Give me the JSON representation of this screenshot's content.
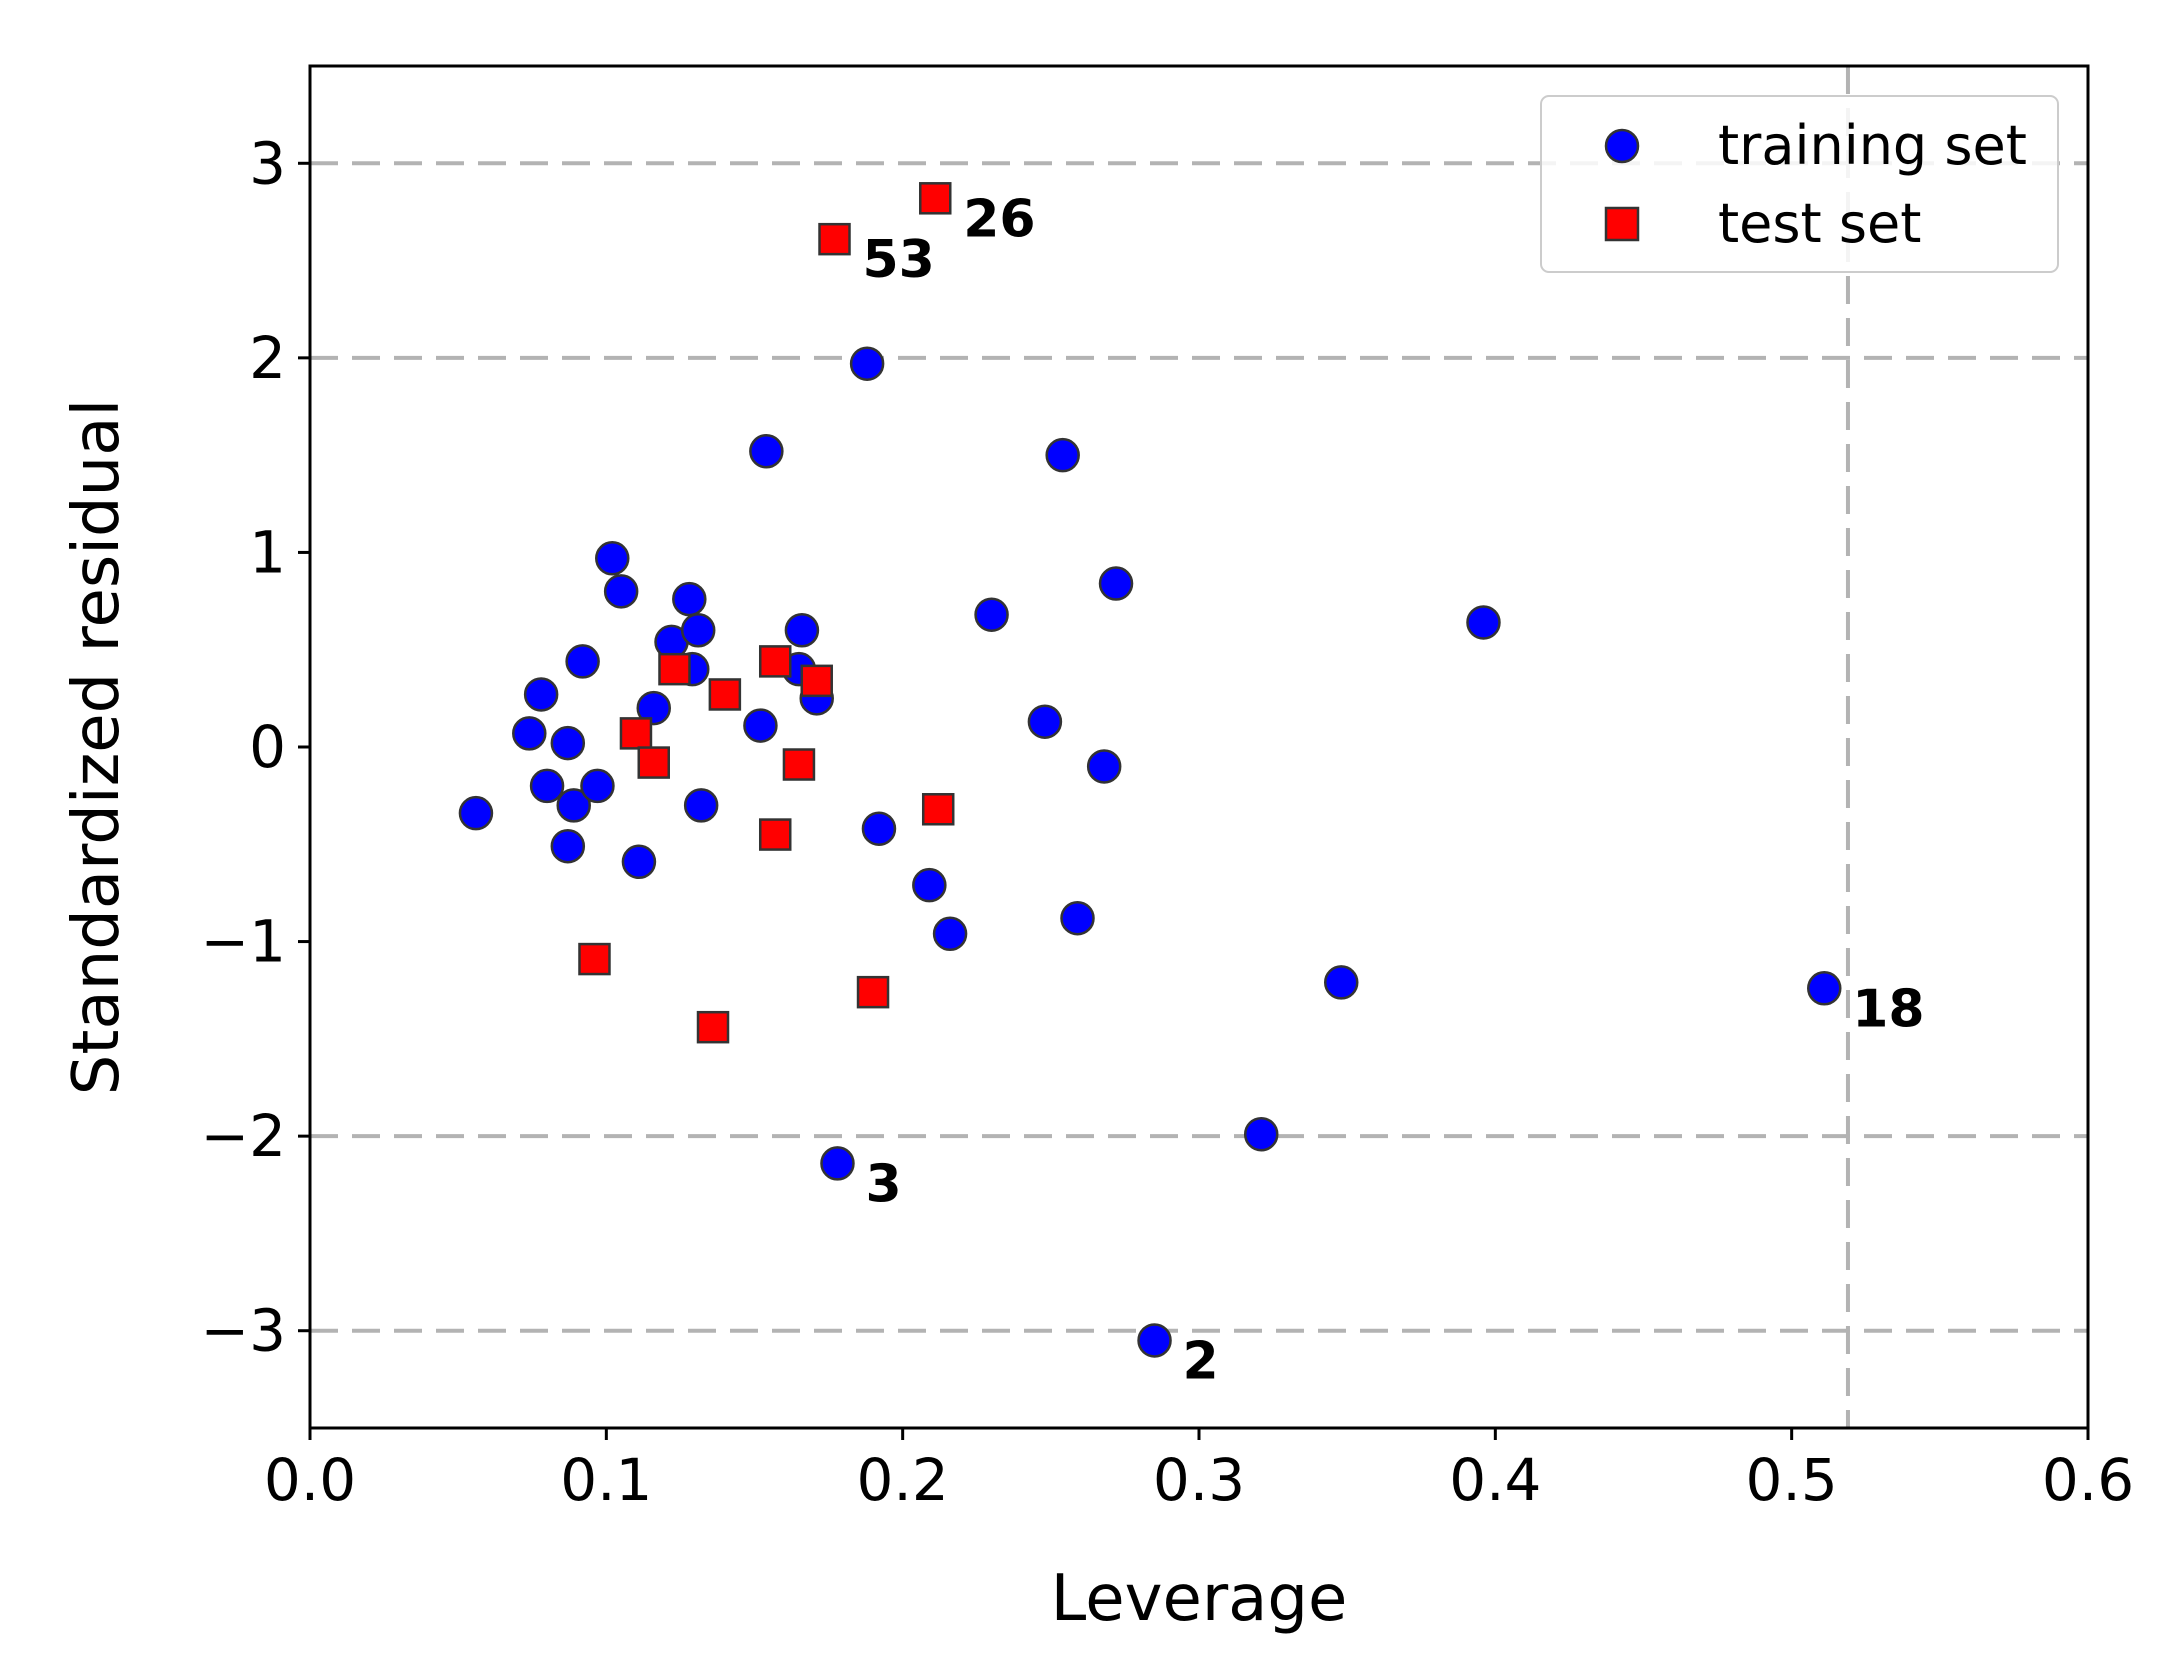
{
  "chart_data": {
    "type": "scatter",
    "title": "",
    "xlabel": "Leverage",
    "ylabel": "Standardized residual",
    "xlim": [
      0.0,
      0.6
    ],
    "ylim": [
      -3.5,
      3.5
    ],
    "xticks": [
      0.0,
      0.1,
      0.2,
      0.3,
      0.4,
      0.5,
      0.6
    ],
    "xtick_labels": [
      "0.0",
      "0.1",
      "0.2",
      "0.3",
      "0.4",
      "0.5",
      "0.6"
    ],
    "yticks": [
      3,
      2,
      1,
      0,
      -1,
      -2,
      -3
    ],
    "ytick_labels": [
      "3",
      "2",
      "1",
      "0",
      "−1",
      "−2",
      "−3"
    ],
    "reference_lines": {
      "horizontal": [
        3,
        2,
        -2,
        -3
      ],
      "vertical": [
        0.519
      ]
    },
    "legend_position": "top-right",
    "colors": {
      "training": "#0000ff",
      "test": "#ff0000",
      "marker_edge": "#333333",
      "reference_line": "#b3b3b3",
      "axes": "#000000"
    },
    "series": [
      {
        "name": "training set",
        "marker": "circle",
        "points": [
          [
            0.056,
            -0.34
          ],
          [
            0.074,
            0.07
          ],
          [
            0.078,
            0.27
          ],
          [
            0.08,
            -0.2
          ],
          [
            0.087,
            0.02
          ],
          [
            0.087,
            -0.51
          ],
          [
            0.089,
            -0.3
          ],
          [
            0.092,
            0.44
          ],
          [
            0.097,
            -0.2
          ],
          [
            0.102,
            0.97
          ],
          [
            0.105,
            0.8
          ],
          [
            0.111,
            -0.59
          ],
          [
            0.116,
            0.2
          ],
          [
            0.122,
            0.54
          ],
          [
            0.128,
            0.76
          ],
          [
            0.129,
            0.4
          ],
          [
            0.131,
            0.6
          ],
          [
            0.132,
            -0.3
          ],
          [
            0.152,
            0.11
          ],
          [
            0.154,
            1.52
          ],
          [
            0.165,
            0.4
          ],
          [
            0.166,
            0.6
          ],
          [
            0.171,
            0.25
          ],
          [
            0.178,
            -2.14
          ],
          [
            0.188,
            1.97
          ],
          [
            0.192,
            -0.42
          ],
          [
            0.209,
            -0.71
          ],
          [
            0.216,
            -0.96
          ],
          [
            0.23,
            0.68
          ],
          [
            0.248,
            0.13
          ],
          [
            0.254,
            1.5
          ],
          [
            0.259,
            -0.88
          ],
          [
            0.268,
            -0.1
          ],
          [
            0.272,
            0.84
          ],
          [
            0.285,
            -3.05
          ],
          [
            0.321,
            -1.99
          ],
          [
            0.348,
            -1.21
          ],
          [
            0.396,
            0.64
          ],
          [
            0.511,
            -1.24
          ]
        ]
      },
      {
        "name": "test set",
        "marker": "square",
        "points": [
          [
            0.096,
            -1.09
          ],
          [
            0.11,
            0.07
          ],
          [
            0.116,
            -0.08
          ],
          [
            0.123,
            0.4
          ],
          [
            0.136,
            -1.44
          ],
          [
            0.14,
            0.27
          ],
          [
            0.157,
            0.44
          ],
          [
            0.157,
            -0.45
          ],
          [
            0.165,
            -0.09
          ],
          [
            0.171,
            0.34
          ],
          [
            0.177,
            2.61
          ],
          [
            0.19,
            -1.26
          ],
          [
            0.211,
            2.82
          ],
          [
            0.212,
            -0.32
          ]
        ]
      }
    ],
    "annotations": [
      {
        "text": "26",
        "x": 0.211,
        "y": 2.82
      },
      {
        "text": "53",
        "x": 0.177,
        "y": 2.61
      },
      {
        "text": "18",
        "x": 0.511,
        "y": -1.24
      },
      {
        "text": "3",
        "x": 0.178,
        "y": -2.14
      },
      {
        "text": "2",
        "x": 0.285,
        "y": -3.05
      }
    ]
  }
}
